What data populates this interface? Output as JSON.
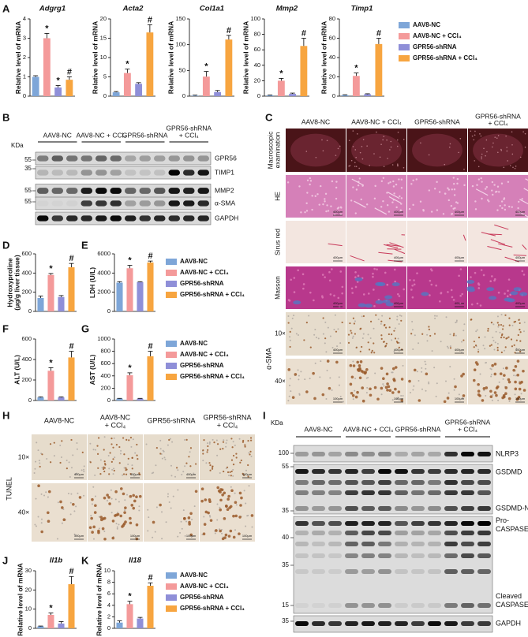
{
  "chart_data": [
    {
      "type": "bar",
      "title": "Adgrg1",
      "ylabel": [
        "Relative level of mRNA"
      ],
      "ylim": [
        0,
        4
      ],
      "yticks": [
        0,
        1,
        2,
        3,
        4
      ],
      "values": [
        1.0,
        3.0,
        0.45,
        0.85
      ],
      "errors": [
        0.06,
        0.25,
        0.1,
        0.15
      ],
      "annotations": [
        null,
        "*",
        "*",
        "#"
      ],
      "colors": [
        "#7ea6d8",
        "#f49a9a",
        "#8f8fd8",
        "#f7a540"
      ]
    },
    {
      "type": "bar",
      "title": "Acta2",
      "ylabel": [
        "Relative level of mRNA"
      ],
      "ylim": [
        0,
        20
      ],
      "yticks": [
        0,
        5,
        10,
        15,
        20
      ],
      "values": [
        1,
        6,
        3.2,
        16.5
      ],
      "errors": [
        0.2,
        1,
        0.3,
        2
      ],
      "annotations": [
        null,
        "*",
        null,
        "#"
      ],
      "colors": [
        "#7ea6d8",
        "#f49a9a",
        "#8f8fd8",
        "#f7a540"
      ]
    },
    {
      "type": "bar",
      "title": "Col1a1",
      "ylabel": [
        "Relative level of mRNA"
      ],
      "ylim": [
        0,
        150
      ],
      "yticks": [
        0,
        50,
        100,
        150
      ],
      "values": [
        1,
        38,
        8,
        110
      ],
      "errors": [
        1,
        10,
        3,
        8
      ],
      "annotations": [
        null,
        "*",
        null,
        "#"
      ],
      "colors": [
        "#7ea6d8",
        "#f49a9a",
        "#8f8fd8",
        "#f7a540"
      ]
    },
    {
      "type": "bar",
      "title": "Mmp2",
      "ylabel": [
        "Relative level of mRNA"
      ],
      "ylim": [
        0,
        100
      ],
      "yticks": [
        0,
        20,
        40,
        60,
        80,
        100
      ],
      "values": [
        1,
        20,
        3,
        65
      ],
      "errors": [
        0.5,
        3,
        1,
        10
      ],
      "annotations": [
        null,
        "*",
        null,
        "#"
      ],
      "colors": [
        "#7ea6d8",
        "#f49a9a",
        "#8f8fd8",
        "#f7a540"
      ]
    },
    {
      "type": "bar",
      "title": "Timp1",
      "ylabel": [
        "Relative level of mRNA"
      ],
      "ylim": [
        0,
        80
      ],
      "yticks": [
        0,
        20,
        40,
        60,
        80
      ],
      "values": [
        1,
        21,
        2,
        54
      ],
      "errors": [
        0.5,
        3,
        0.5,
        6
      ],
      "annotations": [
        null,
        "*",
        null,
        "#"
      ],
      "colors": [
        "#7ea6d8",
        "#f49a9a",
        "#8f8fd8",
        "#f7a540"
      ]
    },
    {
      "type": "bar",
      "ylabel": [
        "Hydroxyproline",
        "(μg/g liver tissue)"
      ],
      "ylim": [
        0,
        600
      ],
      "yticks": [
        0,
        200,
        400,
        600
      ],
      "values": [
        140,
        380,
        150,
        460
      ],
      "errors": [
        20,
        15,
        15,
        40
      ],
      "annotations": [
        null,
        "*",
        null,
        "#"
      ],
      "colors": [
        "#7ea6d8",
        "#f49a9a",
        "#8f8fd8",
        "#f7a540"
      ]
    },
    {
      "type": "bar",
      "ylabel": [
        "LDH (U/L)"
      ],
      "ylim": [
        0,
        6000
      ],
      "yticks": [
        0,
        2000,
        4000,
        6000
      ],
      "values": [
        3000,
        4500,
        3050,
        5100
      ],
      "errors": [
        100,
        300,
        50,
        150
      ],
      "annotations": [
        null,
        "*",
        null,
        "#"
      ],
      "colors": [
        "#7ea6d8",
        "#f49a9a",
        "#8f8fd8",
        "#f7a540"
      ]
    },
    {
      "type": "bar",
      "ylabel": [
        "ALT (U/L)"
      ],
      "ylim": [
        0,
        600
      ],
      "yticks": [
        0,
        200,
        400,
        600
      ],
      "values": [
        30,
        290,
        30,
        420
      ],
      "errors": [
        5,
        30,
        5,
        60
      ],
      "annotations": [
        null,
        "*",
        null,
        "#"
      ],
      "colors": [
        "#7ea6d8",
        "#f49a9a",
        "#8f8fd8",
        "#f7a540"
      ]
    },
    {
      "type": "bar",
      "ylabel": [
        "AST (U/L)"
      ],
      "ylim": [
        0,
        1000
      ],
      "yticks": [
        0,
        200,
        400,
        600,
        800,
        1000
      ],
      "values": [
        30,
        410,
        30,
        720
      ],
      "errors": [
        5,
        40,
        5,
        80
      ],
      "annotations": [
        null,
        "*",
        null,
        "#"
      ],
      "colors": [
        "#7ea6d8",
        "#f49a9a",
        "#8f8fd8",
        "#f7a540"
      ]
    },
    {
      "type": "bar",
      "title": "Il1b",
      "ylabel": [
        "Relative level of mRNA"
      ],
      "ylim": [
        0,
        30
      ],
      "yticks": [
        0,
        10,
        20,
        30
      ],
      "values": [
        1,
        7,
        2.5,
        23
      ],
      "errors": [
        0.2,
        1,
        1,
        4
      ],
      "annotations": [
        null,
        "*",
        null,
        "#"
      ],
      "colors": [
        "#7ea6d8",
        "#f49a9a",
        "#8f8fd8",
        "#f7a540"
      ]
    },
    {
      "type": "bar",
      "title": "Il18",
      "ylabel": [
        "Relative level of mRNA"
      ],
      "ylim": [
        0,
        10
      ],
      "yticks": [
        0,
        2,
        4,
        6,
        8,
        10
      ],
      "values": [
        1,
        4.2,
        1.7,
        7.4
      ],
      "errors": [
        0.3,
        0.5,
        0.2,
        0.5
      ],
      "annotations": [
        null,
        "*",
        null,
        "#"
      ],
      "colors": [
        "#7ea6d8",
        "#f49a9a",
        "#8f8fd8",
        "#f7a540"
      ]
    }
  ],
  "legends": [
    {
      "names": [
        "AAV8-NC",
        "AAV8-NC + CCl₄",
        "GPR56-shRNA",
        "GPR56-shRNA + CCl₄"
      ],
      "colors": [
        "#7ea6d8",
        "#f49a9a",
        "#8f8fd8",
        "#f7a540"
      ]
    },
    {
      "names": [
        "AAV8-NC",
        "AAV8-NC + CCl₄",
        "GPR56-shRNA",
        "GPR56-shRNA + CCl₄"
      ],
      "colors": [
        "#7ea6d8",
        "#f49a9a",
        "#8f8fd8",
        "#f7a540"
      ]
    },
    {
      "names": [
        "AAV8-NC",
        "AAV8-NC + CCl₄",
        "GPR56-shRNA",
        "GPR56-shRNA + CCl₄"
      ],
      "colors": [
        "#7ea6d8",
        "#f49a9a",
        "#8f8fd8",
        "#f7a540"
      ]
    },
    {
      "names": [
        "AAV8-NC",
        "AAV8-NC + CCl₄",
        "GPR56-shRNA",
        "GPR56-shRNA + CCl₄"
      ],
      "colors": [
        "#7ea6d8",
        "#f49a9a",
        "#8f8fd8",
        "#f7a540"
      ]
    }
  ],
  "panels": [
    "A",
    "B",
    "C",
    "D",
    "E",
    "F",
    "G",
    "H",
    "I",
    "J",
    "K"
  ],
  "blot_B": {
    "kda": "KDa",
    "groups": [
      [
        "AAV8-NC"
      ],
      [
        "AAV8-NC + CCl₄"
      ],
      [
        "GPR56-shRNA"
      ],
      [
        "GPR56-shRNA",
        "+ CCl₄"
      ]
    ],
    "markers": [
      "55",
      "35",
      "55",
      "55"
    ],
    "labels": [
      "GPR56",
      "TIMP1",
      "MMP2",
      "α-SMA",
      "GAPDH"
    ]
  },
  "micro_C": {
    "headers": [
      [
        "AAV8-NC"
      ],
      [
        "AAV8-NC + CCl₄"
      ],
      [
        "GPR56-shRNA"
      ],
      [
        "GPR56-shRNA",
        "+ CCl₄"
      ]
    ],
    "rows": [
      {
        "label": [
          "Macroscopic",
          "examination"
        ]
      },
      {
        "label": [
          "HE"
        ],
        "scale": "400μm"
      },
      {
        "label": [
          "Sirus red"
        ],
        "scale": "400μm"
      },
      {
        "label": [
          "Masson"
        ],
        "scale": "400μm"
      },
      {
        "label": [
          "10×"
        ],
        "scale": "400μm"
      },
      {
        "label": [
          "40×"
        ],
        "scale": "100μm"
      }
    ],
    "group_label": "α-SMA"
  },
  "tunel_H": {
    "headers": [
      [
        "AAV8-NC"
      ],
      [
        "AAV8-NC",
        "+ CCl₄"
      ],
      [
        "GPR56-shRNA"
      ],
      [
        "GPR56-shRNA",
        "+ CCl₄"
      ]
    ],
    "rows": [
      {
        "label": "10×",
        "scale": "400μm"
      },
      {
        "label": "40×",
        "scale": "100μm"
      }
    ],
    "group_label": "TUNEL"
  },
  "blot_I": {
    "kda": "KDa",
    "groups": [
      [
        "AAV8-NC"
      ],
      [
        "AAV8-NC + CCl₄"
      ],
      [
        "GPR56-shRNA"
      ],
      [
        "GPR56-shRNA",
        "+ CCl₄"
      ]
    ],
    "markers": [
      "100",
      "55",
      "35",
      "40",
      "35",
      "15",
      "35"
    ],
    "labels": [
      [
        "NLRP3"
      ],
      [
        "GSDMD"
      ],
      [
        "GSDMD-N"
      ],
      [
        "Pro-",
        "CASPASE1"
      ],
      [
        "Cleaved",
        "CASPASE1"
      ],
      [
        "GAPDH"
      ]
    ]
  }
}
